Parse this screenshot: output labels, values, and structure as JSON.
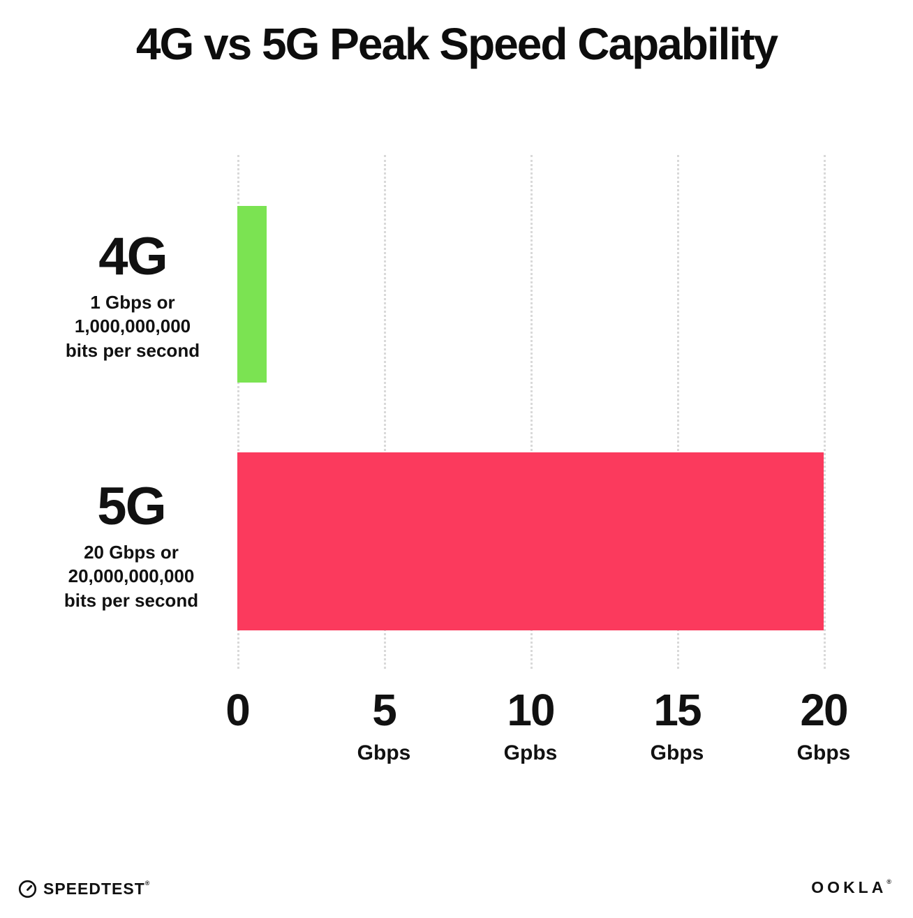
{
  "title": "4G vs 5G Peak Speed Capability",
  "chart_data": {
    "type": "bar",
    "orientation": "horizontal",
    "title": "4G vs 5G Peak Speed Capability",
    "categories": [
      "4G",
      "5G"
    ],
    "values": [
      1,
      20
    ],
    "bar_colors": [
      "#7BE352",
      "#FB3A5D"
    ],
    "xlim": [
      0,
      20
    ],
    "grid": "dotted-vertical",
    "x_ticks": [
      {
        "value": 0,
        "label": "0",
        "unit": ""
      },
      {
        "value": 5,
        "label": "5",
        "unit": "Gbps"
      },
      {
        "value": 10,
        "label": "10",
        "unit": "Gpbs"
      },
      {
        "value": 15,
        "label": "15",
        "unit": "Gbps"
      },
      {
        "value": 20,
        "label": "20",
        "unit": "Gbps"
      }
    ]
  },
  "rows": [
    {
      "label": "4G",
      "sub_line1": "1 Gbps or",
      "sub_line2": "1,000,000,000",
      "sub_line3": "bits per second",
      "value": 1,
      "color": "#7BE352"
    },
    {
      "label": "5G",
      "sub_line1": "20 Gbps or",
      "sub_line2": "20,000,000,000",
      "sub_line3": "bits per second",
      "value": 20,
      "color": "#FB3A5D"
    }
  ],
  "footer": {
    "left_logo": "SPEEDTEST",
    "left_logo_mark": "®",
    "right_logo": "OOKLA",
    "right_logo_mark": "®"
  }
}
